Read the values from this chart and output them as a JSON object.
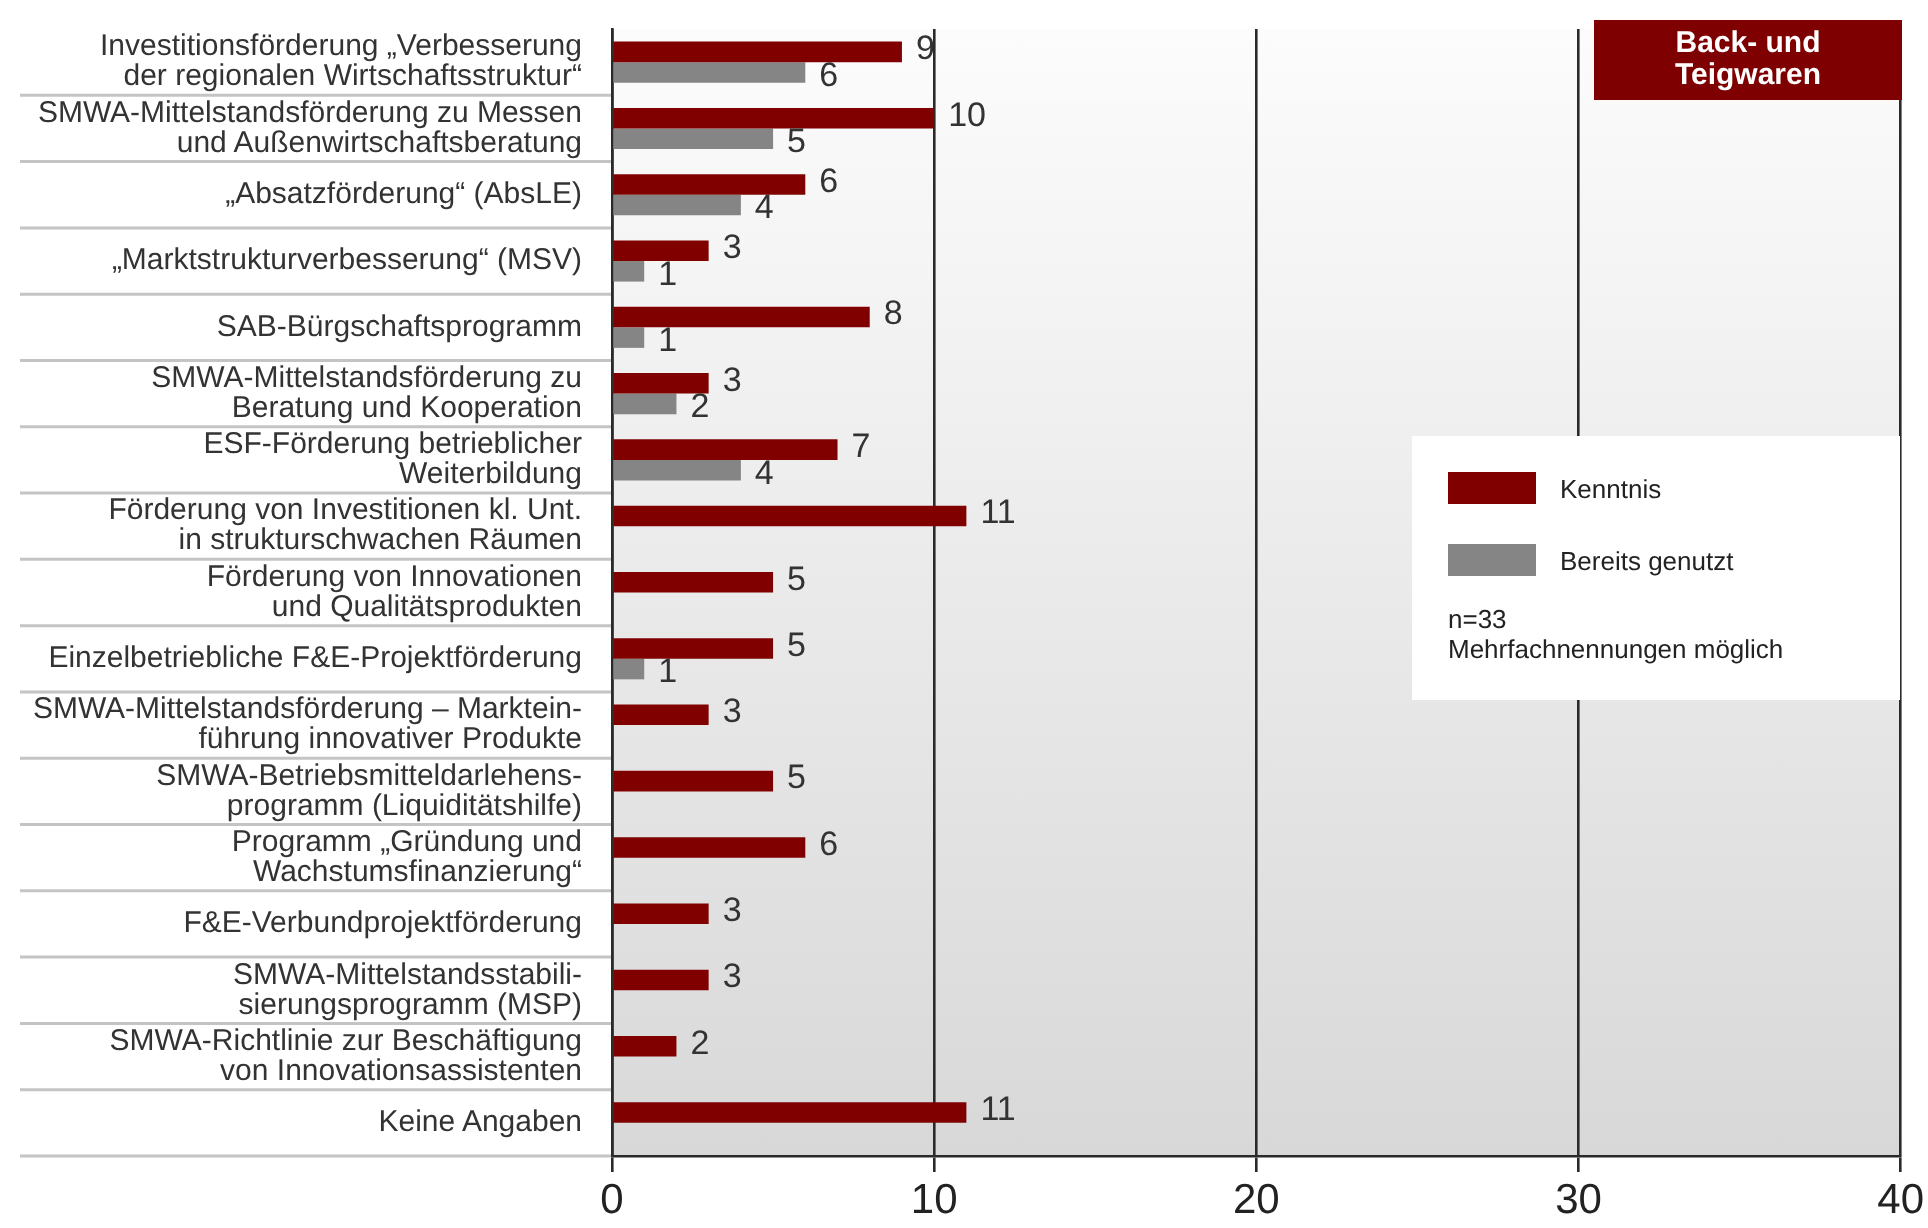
{
  "chart_data": {
    "type": "bar",
    "orientation": "horizontal",
    "title": "Back- und\nTeigwaren",
    "categories": [
      "Investitionsförderung „Verbesserung\nder regionalen Wirtschaftsstruktur“",
      "SMWA-Mittelstandsförderung zu Messen\nund Außenwirtschaftsberatung",
      "„Absatzförderung“ (AbsLE)",
      "„Marktstrukturverbesserung“ (MSV)",
      "SAB-Bürgschaftsprogramm",
      "SMWA-Mittelstandsförderung zu\nBeratung und Kooperation",
      "ESF-Förderung betrieblicher\nWeiterbildung",
      "Förderung von Investitionen kl. Unt.\nin strukturschwachen Räumen",
      "Förderung von Innovationen\nund Qualitätsprodukten",
      "Einzelbetriebliche F&E-Projektförderung",
      "SMWA-Mittelstandsförderung – Marktein-\nführung innovativer Produkte",
      "SMWA-Betriebsmitteldarlehens-\nprogramm (Liquiditätshilfe)",
      "Programm „Gründung und\nWachstumsfinanzierung“",
      "F&E-Verbundprojektförderung",
      "SMWA-Mittelstandsstabili-\nsierungsprogramm (MSP)",
      "SMWA-Richtlinie zur Beschäftigung\nvon Innovationsassistenten",
      "Keine Angaben"
    ],
    "series": [
      {
        "name": "Kenntnis",
        "color": "#800000",
        "values": [
          9,
          10,
          6,
          3,
          8,
          3,
          7,
          11,
          5,
          5,
          3,
          5,
          6,
          3,
          3,
          2,
          11
        ]
      },
      {
        "name": "Bereits genutzt",
        "color": "#858585",
        "values": [
          6,
          5,
          4,
          1,
          1,
          2,
          4,
          null,
          null,
          1,
          null,
          null,
          null,
          null,
          null,
          null,
          null
        ]
      }
    ],
    "xlim": [
      0,
      40
    ],
    "xticks": [
      0,
      10,
      20,
      30,
      40
    ],
    "grid": "x",
    "legend": "right",
    "data_labels": true,
    "annotations": [
      "n=33\nMehrfachnennungen möglich"
    ]
  }
}
